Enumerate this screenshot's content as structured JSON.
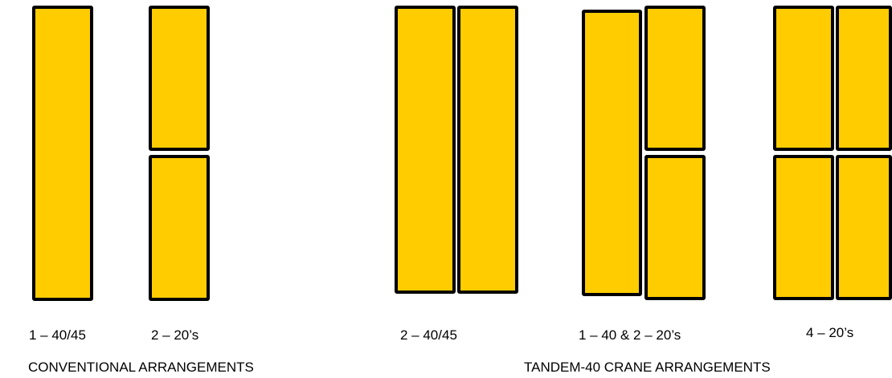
{
  "colors": {
    "container_fill": "#FFCC00",
    "container_outline": "#000000",
    "background": "#FFFFFF"
  },
  "arrangements": [
    {
      "label": "1 – 40/45"
    },
    {
      "label": "2 – 20’s"
    },
    {
      "label": "2 – 40/45"
    },
    {
      "label": "1 – 40 & 2 – 20’s"
    },
    {
      "label": "4 – 20’s"
    }
  ],
  "groups": [
    {
      "title": "CONVENTIONAL ARRANGEMENTS"
    },
    {
      "title": "TANDEM-40 CRANE ARRANGEMENTS"
    }
  ]
}
